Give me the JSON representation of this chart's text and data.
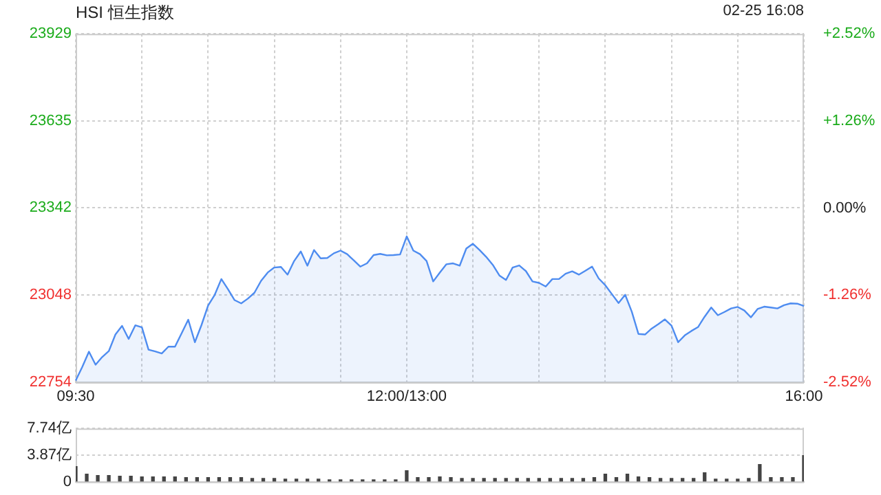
{
  "chart_data": [
    {
      "type": "area",
      "title": "HSI 恒生指数",
      "subtitle": "02-25 16:08",
      "color": "#4e8cf0",
      "categories": [
        "09:30",
        null,
        null,
        null,
        null,
        null,
        null,
        null,
        null,
        null,
        null,
        null,
        null,
        null,
        null,
        null,
        null,
        null,
        null,
        null,
        null,
        null,
        null,
        null,
        null,
        null,
        null,
        null,
        null,
        null,
        null,
        null,
        null,
        null,
        null,
        null,
        null,
        null,
        null,
        null,
        null,
        null,
        null,
        null,
        null,
        null,
        null,
        null,
        null,
        null,
        "12:00/13:00",
        null,
        null,
        null,
        null,
        null,
        null,
        null,
        null,
        null,
        null,
        null,
        null,
        null,
        null,
        null,
        null,
        null,
        null,
        null,
        null,
        null,
        null,
        null,
        null,
        null,
        null,
        null,
        null,
        null,
        null,
        null,
        null,
        null,
        null,
        null,
        null,
        null,
        null,
        null,
        null,
        null,
        null,
        null,
        null,
        null,
        null,
        null,
        null,
        null,
        null,
        null,
        null,
        null,
        null,
        null,
        null,
        null,
        null,
        null,
        "16:00"
      ],
      "values": [
        22760,
        22806,
        22857,
        22813,
        22839,
        22859,
        22915,
        22944,
        22900,
        22946,
        22939,
        22864,
        22858,
        22851,
        22874,
        22874,
        22919,
        22965,
        22889,
        22947,
        23013,
        23049,
        23102,
        23068,
        23031,
        23020,
        23036,
        23056,
        23096,
        23124,
        23141,
        23143,
        23117,
        23163,
        23195,
        23147,
        23200,
        23172,
        23173,
        23189,
        23198,
        23186,
        23165,
        23144,
        23155,
        23183,
        23187,
        23182,
        23183,
        23185,
        23246,
        23198,
        23186,
        23163,
        23094,
        23124,
        23152,
        23155,
        23147,
        23205,
        23221,
        23200,
        23177,
        23150,
        23114,
        23099,
        23141,
        23148,
        23129,
        23094,
        23089,
        23077,
        23102,
        23102,
        23120,
        23128,
        23117,
        23130,
        23144,
        23104,
        23081,
        23051,
        23021,
        23049,
        22992,
        22917,
        22915,
        22935,
        22950,
        22966,
        22945,
        22889,
        22912,
        22927,
        22940,
        22975,
        23006,
        22980,
        22991,
        23003,
        23008,
        22996,
        22973,
        23001,
        23009,
        23006,
        23003,
        23014,
        23020,
        23019,
        23011
      ],
      "ylim": [
        22754,
        23929
      ],
      "yticks": [
        22754,
        23048,
        23342,
        23635,
        23929
      ],
      "y2lim": [
        -2.52,
        2.52
      ],
      "y2ticks": [
        {
          "value": -2.52,
          "label": "-2.52%"
        },
        {
          "value": -1.26,
          "label": "-1.26%"
        },
        {
          "value": 0,
          "label": "0.00%"
        },
        {
          "value": 1.26,
          "label": "+1.26%"
        },
        {
          "value": 2.52,
          "label": "+2.52%"
        }
      ],
      "grid": true
    },
    {
      "type": "bar",
      "color": "#444444",
      "categories": [
        null,
        null,
        null,
        null,
        null,
        null,
        null,
        null,
        null,
        null,
        null,
        null,
        null,
        null,
        null,
        null,
        null,
        null,
        null,
        null,
        null,
        null,
        null,
        null,
        null,
        null,
        null,
        null,
        null,
        null,
        null,
        null,
        null,
        null,
        null,
        null,
        null,
        null,
        null,
        null,
        null,
        null,
        null,
        null,
        null,
        null,
        null,
        null,
        null,
        null,
        null,
        null,
        null,
        null,
        null,
        null,
        null,
        null,
        null,
        null,
        null,
        null,
        null,
        null,
        null,
        null,
        null
      ],
      "values": [
        2.2,
        1.1,
        0.9,
        0.9,
        0.8,
        0.8,
        0.7,
        0.7,
        0.7,
        0.7,
        0.6,
        0.6,
        0.6,
        0.6,
        0.6,
        0.6,
        0.5,
        0.5,
        0.5,
        0.4,
        0.4,
        0.4,
        0.4,
        0.3,
        0.3,
        0.3,
        0.3,
        0.3,
        0.3,
        0.3,
        1.6,
        0.6,
        0.6,
        0.7,
        0.6,
        0.5,
        0.5,
        0.5,
        0.5,
        0.5,
        0.5,
        0.5,
        0.5,
        0.5,
        0.5,
        0.5,
        0.5,
        0.6,
        1.1,
        0.6,
        1.1,
        0.7,
        0.6,
        0.5,
        0.5,
        0.5,
        0.5,
        1.3,
        0.4,
        0.4,
        0.4,
        0.5,
        2.5,
        0.6,
        0.6,
        0.6,
        3.8
      ],
      "ylim": [
        0,
        7.74
      ],
      "yticks": [
        {
          "value": 0,
          "label": "0"
        },
        {
          "value": 3.87,
          "label": "3.87亿"
        },
        {
          "value": 7.74,
          "label": "7.74亿"
        }
      ],
      "grid": "y",
      "tick_labels": "y"
    }
  ]
}
